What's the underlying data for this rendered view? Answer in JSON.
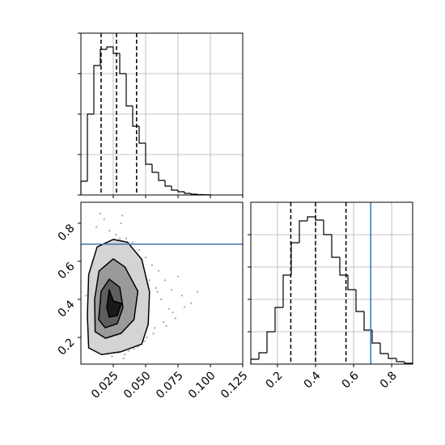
{
  "chart_data": [
    {
      "type": "histogram",
      "bins": [
        0,
        0.005,
        0.01,
        0.015,
        0.02,
        0.025,
        0.03,
        0.035,
        0.04,
        0.045,
        0.05,
        0.055,
        0.06,
        0.065,
        0.07,
        0.075,
        0.08,
        0.085,
        0.09,
        0.095,
        0.1
      ],
      "values": [
        170,
        1000,
        1600,
        1800,
        1830,
        1750,
        1500,
        1100,
        850,
        640,
        380,
        280,
        180,
        110,
        60,
        40,
        20,
        10,
        5,
        3
      ],
      "color": "#000000",
      "quantiles": [
        0.0156,
        0.0275,
        0.043
      ],
      "xlim": [
        0,
        0.125
      ],
      "xticks": [
        0.025,
        0.05,
        0.075,
        0.1,
        0.125
      ],
      "ylim": [
        0,
        2000
      ],
      "yticks": [
        0,
        500,
        1000,
        1500,
        2000
      ],
      "xticklabels": false,
      "yticklabels": false,
      "grid": true
    },
    {
      "type": "scatter",
      "x": [
        0.012,
        0.018,
        0.022,
        0.027,
        0.031,
        0.035,
        0.04,
        0.045,
        0.05,
        0.055,
        0.06,
        0.065,
        0.07,
        0.078,
        0.085,
        0.009,
        0.014,
        0.02,
        0.025,
        0.03,
        0.038,
        0.042,
        0.048,
        0.053,
        0.058,
        0.062,
        0.068,
        0.073,
        0.005,
        0.011,
        0.016,
        0.024,
        0.029,
        0.033,
        0.037,
        0.044,
        0.051,
        0.057,
        0.064,
        0.071,
        0.08,
        0.09,
        0.007,
        0.019,
        0.026,
        0.034,
        0.041,
        0.049,
        0.056,
        0.066,
        0.004,
        0.013,
        0.021,
        0.028,
        0.036,
        0.047,
        0.059,
        0.075,
        0.015,
        0.032
      ],
      "y": [
        0.78,
        0.82,
        0.76,
        0.74,
        0.8,
        0.72,
        0.7,
        0.66,
        0.62,
        0.58,
        0.55,
        0.5,
        0.45,
        0.42,
        0.38,
        0.6,
        0.65,
        0.68,
        0.7,
        0.72,
        0.68,
        0.64,
        0.56,
        0.5,
        0.46,
        0.4,
        0.35,
        0.3,
        0.3,
        0.22,
        0.14,
        0.1,
        0.12,
        0.09,
        0.13,
        0.15,
        0.2,
        0.25,
        0.28,
        0.33,
        0.36,
        0.44,
        0.5,
        0.12,
        0.16,
        0.11,
        0.14,
        0.18,
        0.22,
        0.26,
        0.42,
        0.55,
        0.6,
        0.62,
        0.66,
        0.48,
        0.44,
        0.52,
        0.85,
        0.84
      ],
      "color": "#b0b0b0",
      "contours": [
        {
          "x": [
            0.006,
            0.005,
            0.006,
            0.0125,
            0.025,
            0.036,
            0.047,
            0.053,
            0.052,
            0.047,
            0.031,
            0.016,
            0.006
          ],
          "y": [
            0.145,
            0.315,
            0.53,
            0.675,
            0.715,
            0.7,
            0.61,
            0.44,
            0.27,
            0.165,
            0.125,
            0.11,
            0.145
          ],
          "fill": "#d4d4d4"
        },
        {
          "x": [
            0.011,
            0.0106,
            0.014,
            0.025,
            0.034,
            0.044,
            0.041,
            0.031,
            0.019,
            0.011
          ],
          "y": [
            0.23,
            0.4,
            0.549,
            0.6125,
            0.57,
            0.4425,
            0.294,
            0.2215,
            0.196,
            0.23
          ],
          "fill": "#9a9a9a"
        },
        {
          "x": [
            0.01375,
            0.0156,
            0.0219,
            0.03,
            0.0325,
            0.0281,
            0.01875,
            0.01375
          ],
          "y": [
            0.294,
            0.4425,
            0.506,
            0.464,
            0.3575,
            0.2725,
            0.251,
            0.294
          ],
          "fill": "#5e5e5e"
        },
        {
          "x": [
            0.02,
            0.0219,
            0.025,
            0.03125,
            0.0281,
            0.0219,
            0.02
          ],
          "y": [
            0.3575,
            0.451,
            0.3915,
            0.379,
            0.315,
            0.3065,
            0.3575
          ],
          "fill": "#1a1a1a"
        }
      ],
      "truth_y": 0.69,
      "truth_color": "#3b75af",
      "xlim": [
        0,
        0.125
      ],
      "xticks": [
        0.025,
        {
          "value": 0.05,
          "label": "0.050"
        },
        0.075,
        {
          "value": 0.1,
          "label": "0.100"
        },
        0.125
      ],
      "ylim": [
        0.06,
        0.91
      ],
      "yticks": [
        0.2,
        0.4,
        0.6,
        0.8
      ],
      "xticklabels": true,
      "yticklabels": true,
      "grid": false
    },
    {
      "type": "histogram",
      "bins": [
        0.06,
        0.1025,
        0.145,
        0.1875,
        0.23,
        0.2725,
        0.315,
        0.3575,
        0.4,
        0.4425,
        0.485,
        0.5275,
        0.57,
        0.6125,
        0.655,
        0.6975,
        0.74,
        0.7825,
        0.825,
        0.8675,
        0.91
      ],
      "values": [
        60,
        140,
        400,
        700,
        1100,
        1500,
        1770,
        1820,
        1780,
        1600,
        1320,
        1100,
        920,
        650,
        420,
        260,
        130,
        70,
        30,
        10
      ],
      "color": "#000000",
      "quantiles": [
        0.27,
        0.4,
        0.56
      ],
      "truth": 0.69,
      "truth_color": "#3b75af",
      "xlim": [
        0.06,
        0.91
      ],
      "xticks": [
        0.2,
        0.4,
        0.6,
        0.8
      ],
      "ylim": [
        0,
        2000
      ],
      "yticks": [
        400,
        800,
        1200,
        1600
      ],
      "xticklabels": true,
      "yticklabels": false,
      "grid": true
    }
  ]
}
